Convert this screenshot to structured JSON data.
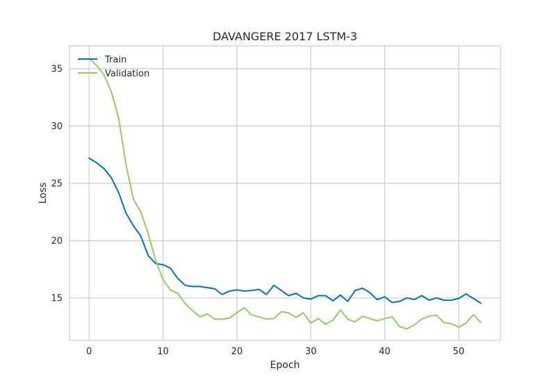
{
  "chart_data": {
    "type": "line",
    "title": "DAVANGERE 2017 LSTM-3",
    "xlabel": "Epoch",
    "ylabel": "Loss",
    "xlim": [
      -2.65,
      55.65
    ],
    "ylim": [
      11.3,
      37.0
    ],
    "xticks": [
      0,
      10,
      20,
      30,
      40,
      50
    ],
    "yticks": [
      15,
      20,
      25,
      30,
      35
    ],
    "grid": true,
    "legend_position": "top-left",
    "series": [
      {
        "name": "Train",
        "color": "#0072b2",
        "x": [
          0,
          1,
          2,
          3,
          4,
          5,
          6,
          7,
          8,
          9,
          10,
          11,
          12,
          13,
          14,
          15,
          16,
          17,
          18,
          19,
          20,
          21,
          22,
          23,
          24,
          25,
          26,
          27,
          28,
          29,
          30,
          31,
          32,
          33,
          34,
          35,
          36,
          37,
          38,
          39,
          40,
          41,
          42,
          43,
          44,
          45,
          46,
          47,
          48,
          49,
          50,
          51,
          52,
          53
        ],
        "values": [
          27.2,
          26.8,
          26.3,
          25.5,
          24.2,
          22.4,
          21.3,
          20.4,
          18.7,
          18.0,
          17.9,
          17.6,
          16.7,
          16.1,
          16.0,
          16.0,
          15.9,
          15.8,
          15.3,
          15.6,
          15.7,
          15.6,
          15.65,
          15.75,
          15.3,
          16.1,
          15.65,
          15.2,
          15.4,
          15.0,
          14.9,
          15.2,
          15.2,
          14.75,
          15.25,
          14.7,
          15.65,
          15.85,
          15.45,
          14.85,
          15.1,
          14.6,
          14.7,
          15.0,
          14.85,
          15.2,
          14.8,
          15.0,
          14.8,
          14.8,
          14.95,
          15.35,
          14.95,
          14.55
        ]
      },
      {
        "name": "Validation",
        "color": "#96c864",
        "x": [
          0,
          1,
          2,
          3,
          4,
          5,
          6,
          7,
          8,
          9,
          10,
          11,
          12,
          13,
          14,
          15,
          16,
          17,
          18,
          19,
          20,
          21,
          22,
          23,
          24,
          25,
          26,
          27,
          28,
          29,
          30,
          31,
          32,
          33,
          34,
          35,
          36,
          37,
          38,
          39,
          40,
          41,
          42,
          43,
          44,
          45,
          46,
          47,
          48,
          49,
          50,
          51,
          52,
          53
        ],
        "values": [
          35.9,
          35.3,
          34.5,
          33.0,
          30.7,
          26.6,
          23.6,
          22.5,
          20.6,
          18.3,
          16.6,
          15.7,
          15.4,
          14.5,
          13.9,
          13.35,
          13.6,
          13.15,
          13.15,
          13.25,
          13.7,
          14.15,
          13.5,
          13.35,
          13.15,
          13.2,
          13.8,
          13.7,
          13.3,
          13.7,
          12.8,
          13.2,
          12.7,
          13.05,
          13.95,
          13.15,
          12.9,
          13.4,
          13.2,
          13.0,
          13.2,
          13.35,
          12.5,
          12.3,
          12.65,
          13.15,
          13.4,
          13.5,
          12.85,
          12.75,
          12.45,
          12.8,
          13.55,
          12.85
        ]
      }
    ]
  }
}
